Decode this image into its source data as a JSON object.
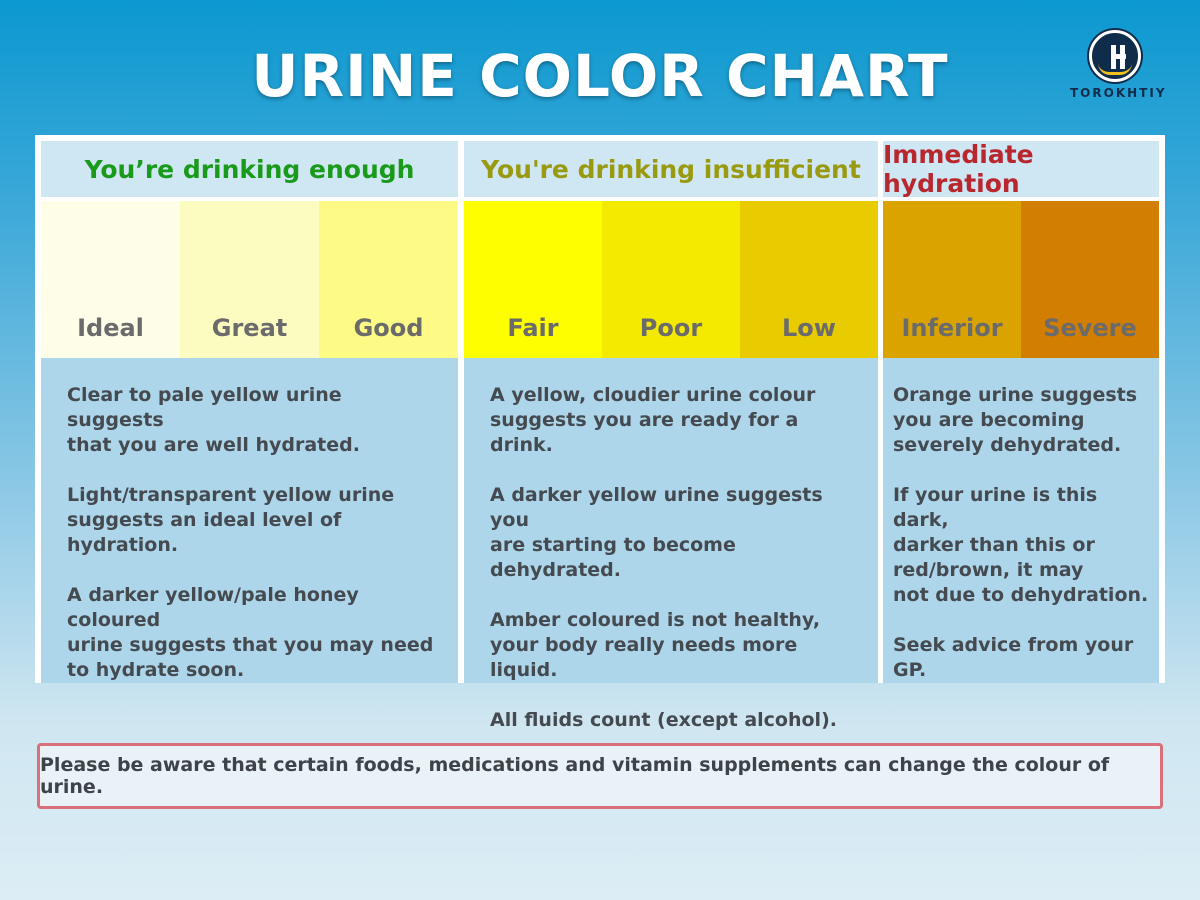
{
  "title": "URINE COLOR CHART",
  "logo": {
    "icon": "torokhtiy-logo-icon",
    "text": "TOROKHTIY"
  },
  "columns": [
    {
      "heading": "You’re drinking enough",
      "heading_color": "#1a9a1a",
      "swatches": [
        {
          "label": "Ideal",
          "color": "#fefde8"
        },
        {
          "label": "Great",
          "color": "#fdfcc0"
        },
        {
          "label": "Good",
          "color": "#fdfa86"
        }
      ],
      "paragraphs": [
        "Clear to pale yellow urine suggests\nthat you are well hydrated.",
        "Light/transparent yellow urine\nsuggests an ideal level of hydration.",
        "A darker yellow/pale honey coloured\nurine suggests that you may need\nto hydrate soon."
      ]
    },
    {
      "heading": "You're drinking insufficient",
      "heading_color": "#9a9a10",
      "swatches": [
        {
          "label": "Fair",
          "color": "#fefe00"
        },
        {
          "label": "Poor",
          "color": "#f4ea00"
        },
        {
          "label": "Low",
          "color": "#e8cc00"
        }
      ],
      "paragraphs": [
        "A yellow, cloudier urine colour\nsuggests you are ready for a drink.",
        "A darker yellow urine suggests you\nare starting to become dehydrated.",
        "Amber coloured is not healthy,\nyour body really needs more liquid.",
        "All fluids count (except alcohol)."
      ]
    },
    {
      "heading": "Immediate hydration",
      "heading_color": "#b8262e",
      "swatches": [
        {
          "label": "Inferior",
          "color": "#daa300"
        },
        {
          "label": "Severe",
          "color": "#d27e00"
        }
      ],
      "paragraphs": [
        "Orange urine suggests\nyou are becoming\nseverely dehydrated.",
        "If your urine is this dark,\ndarker than this or\nred/brown, it may\nnot due to dehydration.",
        "Seek advice from your GP."
      ]
    }
  ],
  "notice": "Please be aware that certain foods, medications and vitamin supplements can change the colour of urine."
}
